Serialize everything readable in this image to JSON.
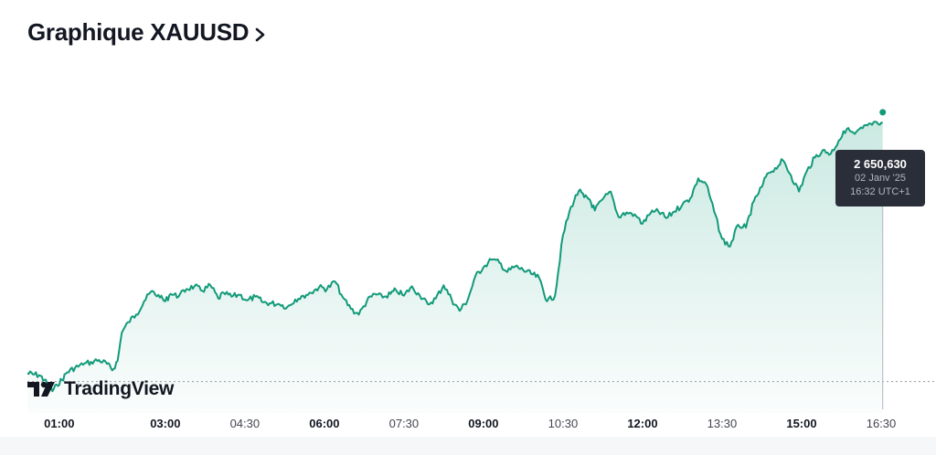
{
  "header": {
    "title": "Graphique XAUUSD"
  },
  "logo": {
    "text": "TradingView"
  },
  "tooltip": {
    "price": "2 650,630",
    "date": "02 Janv '25",
    "time": "16:32 UTC+1"
  },
  "colors": {
    "line": "#129a7a",
    "area_top": "#129a7a",
    "tooltip_bg": "#2a2e39"
  },
  "chart_data": {
    "type": "area",
    "symbol": "XAUUSD",
    "x_ticks": [
      {
        "label": "01:00",
        "hour": 1.0,
        "bold": true
      },
      {
        "label": "03:00",
        "hour": 3.0,
        "bold": true
      },
      {
        "label": "04:30",
        "hour": 4.5,
        "bold": false
      },
      {
        "label": "06:00",
        "hour": 6.0,
        "bold": true
      },
      {
        "label": "07:30",
        "hour": 7.5,
        "bold": false
      },
      {
        "label": "09:00",
        "hour": 9.0,
        "bold": true
      },
      {
        "label": "10:30",
        "hour": 10.5,
        "bold": false
      },
      {
        "label": "12:00",
        "hour": 12.0,
        "bold": true
      },
      {
        "label": "13:30",
        "hour": 13.5,
        "bold": false
      },
      {
        "label": "15:00",
        "hour": 15.0,
        "bold": true
      },
      {
        "label": "16:30",
        "hour": 16.5,
        "bold": false
      }
    ],
    "xlim": [
      0.4,
      17.0
    ],
    "ylim": [
      2620.0,
      2654.0
    ],
    "reference_line": 2624.0,
    "last_point": {
      "hour": 16.53,
      "value": 2650.63
    },
    "series": [
      {
        "x": [
          0.4,
          0.5,
          0.62,
          0.72,
          0.8,
          0.87,
          0.95,
          1.05,
          1.15,
          1.3,
          1.45,
          1.6,
          1.75,
          1.9,
          2.0,
          2.1,
          2.18,
          2.3,
          2.45,
          2.6,
          2.75,
          2.9,
          3.0,
          3.1,
          3.25,
          3.4,
          3.55,
          3.7,
          3.85,
          4.0,
          4.1,
          4.25,
          4.4,
          4.55,
          4.7,
          4.85,
          5.0,
          5.15,
          5.3,
          5.45,
          5.6,
          5.75,
          5.9,
          6.05,
          6.2,
          6.35,
          6.5,
          6.65,
          6.8,
          6.95,
          7.1,
          7.25,
          7.35,
          7.5,
          7.65,
          7.8,
          7.95,
          8.1,
          8.25,
          8.4,
          8.55,
          8.7,
          8.85,
          9.0,
          9.15,
          9.3,
          9.45,
          9.6,
          9.75,
          9.9,
          10.05,
          10.2,
          10.35,
          10.5,
          10.65,
          10.8,
          10.9,
          11.0,
          11.1,
          11.25,
          11.4,
          11.55,
          11.7,
          11.85,
          12.0,
          12.15,
          12.3,
          12.45,
          12.6,
          12.75,
          12.9,
          13.05,
          13.2,
          13.35,
          13.5,
          13.65,
          13.8,
          13.95,
          14.1,
          14.25,
          14.35,
          14.5,
          14.65,
          14.8,
          14.95,
          15.1,
          15.25,
          15.4,
          15.55,
          15.7,
          15.85,
          16.0,
          16.15,
          16.3,
          16.45,
          16.53
        ],
        "values": [
          2624.2,
          2624.1,
          2624.0,
          2623.5,
          2622.8,
          2622.3,
          2623.0,
          2623.5,
          2624.3,
          2624.8,
          2625.1,
          2625.4,
          2625.6,
          2625.2,
          2624.5,
          2625.5,
          2628.5,
          2629.6,
          2630.4,
          2631.8,
          2632.9,
          2632.2,
          2631.8,
          2632.6,
          2632.3,
          2633.1,
          2633.4,
          2632.9,
          2633.5,
          2632.1,
          2632.7,
          2632.3,
          2632.5,
          2631.9,
          2632.3,
          2631.7,
          2631.6,
          2631.5,
          2631.2,
          2632.0,
          2632.4,
          2632.7,
          2633.3,
          2633.1,
          2633.9,
          2632.2,
          2631.0,
          2630.4,
          2631.8,
          2632.6,
          2632.2,
          2632.6,
          2633.0,
          2632.4,
          2633.4,
          2632.4,
          2631.5,
          2632.1,
          2633.5,
          2632.0,
          2630.8,
          2631.9,
          2634.5,
          2635.4,
          2636.2,
          2635.9,
          2634.9,
          2635.5,
          2635.1,
          2634.7,
          2634.3,
          2631.8,
          2632.4,
          2638.8,
          2641.8,
          2643.5,
          2642.8,
          2642.6,
          2641.4,
          2642.6,
          2643.4,
          2640.7,
          2641.2,
          2641.0,
          2640.0,
          2641.1,
          2641.3,
          2640.6,
          2641.3,
          2642.0,
          2642.7,
          2644.8,
          2644.2,
          2641.3,
          2638.4,
          2637.6,
          2639.9,
          2639.6,
          2642.4,
          2643.9,
          2645.3,
          2645.9,
          2646.7,
          2645.1,
          2643.4,
          2645.6,
          2647.0,
          2647.8,
          2647.4,
          2648.8,
          2650.0,
          2649.5,
          2650.1,
          2650.6,
          2650.5,
          2650.63
        ]
      }
    ]
  }
}
